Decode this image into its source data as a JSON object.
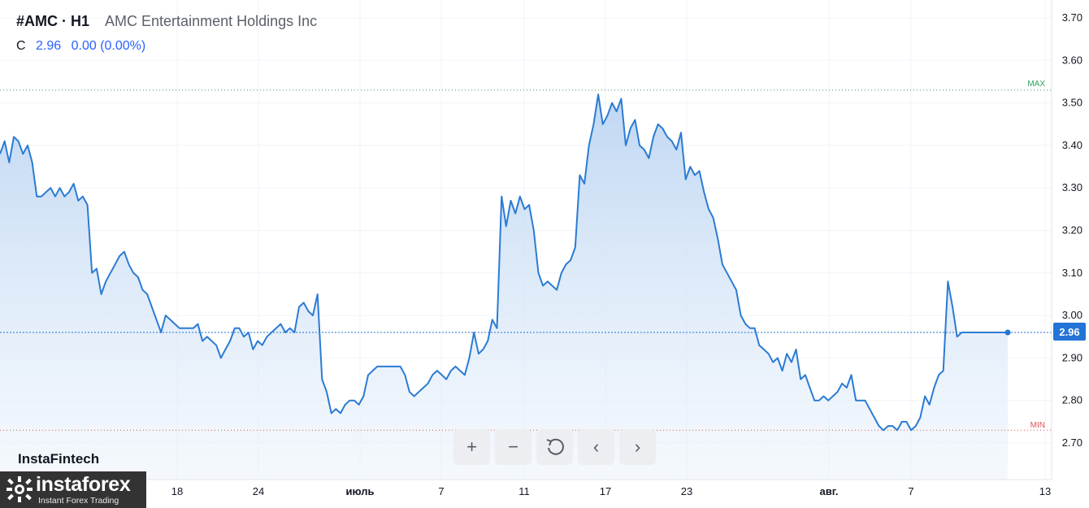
{
  "header": {
    "symbol": "#AMC · H1",
    "company": "AMC Entertainment Holdings Inc"
  },
  "quote": {
    "label": "C",
    "value": "2.96",
    "change": "0.00 (0.00%)"
  },
  "brand": "InstaFintech",
  "logo": {
    "wordmark": "instaforex",
    "tagline": "Instant Forex Trading"
  },
  "toolbar": {
    "zoom_in": "+",
    "zoom_out": "−",
    "prev": "‹",
    "next": "›"
  },
  "chart_data": {
    "type": "area",
    "y_ticks": [
      "3.70",
      "3.60",
      "3.50",
      "3.40",
      "3.30",
      "3.20",
      "3.10",
      "3.00",
      "2.90",
      "2.80",
      "2.70"
    ],
    "x_ticks": [
      "18",
      "24",
      "июль",
      "7",
      "11",
      "17",
      "23",
      "авг.",
      "7",
      "13"
    ],
    "ylim": [
      2.62,
      3.74
    ],
    "current_price": "2.96",
    "max_label": "MAX",
    "max_value": 3.53,
    "min_label": "MIN",
    "min_value": 2.73,
    "grid": true,
    "colors": {
      "line": "#2b7bd3",
      "fill": "#c9ddf3",
      "max": "#2e9e5b",
      "min": "#e05050",
      "price": "#2374d6"
    },
    "values": [
      3.38,
      3.41,
      3.36,
      3.42,
      3.41,
      3.38,
      3.4,
      3.36,
      3.28,
      3.28,
      3.29,
      3.3,
      3.28,
      3.3,
      3.28,
      3.29,
      3.31,
      3.27,
      3.28,
      3.26,
      3.1,
      3.11,
      3.05,
      3.08,
      3.1,
      3.12,
      3.14,
      3.15,
      3.12,
      3.1,
      3.09,
      3.06,
      3.05,
      3.02,
      2.99,
      2.96,
      3.0,
      2.99,
      2.98,
      2.97,
      2.97,
      2.97,
      2.97,
      2.98,
      2.94,
      2.95,
      2.94,
      2.93,
      2.9,
      2.92,
      2.94,
      2.97,
      2.97,
      2.95,
      2.96,
      2.92,
      2.94,
      2.93,
      2.95,
      2.96,
      2.97,
      2.98,
      2.96,
      2.97,
      2.96,
      3.02,
      3.03,
      3.01,
      3.0,
      3.05,
      2.85,
      2.82,
      2.77,
      2.78,
      2.77,
      2.79,
      2.8,
      2.8,
      2.79,
      2.81,
      2.86,
      2.87,
      2.88,
      2.88,
      2.88,
      2.88,
      2.88,
      2.88,
      2.86,
      2.82,
      2.81,
      2.82,
      2.83,
      2.84,
      2.86,
      2.87,
      2.86,
      2.85,
      2.87,
      2.88,
      2.87,
      2.86,
      2.9,
      2.96,
      2.91,
      2.92,
      2.94,
      2.99,
      2.97,
      3.28,
      3.21,
      3.27,
      3.24,
      3.28,
      3.25,
      3.26,
      3.2,
      3.1,
      3.07,
      3.08,
      3.07,
      3.06,
      3.1,
      3.12,
      3.13,
      3.16,
      3.33,
      3.31,
      3.4,
      3.45,
      3.52,
      3.45,
      3.47,
      3.5,
      3.48,
      3.51,
      3.4,
      3.44,
      3.46,
      3.4,
      3.39,
      3.37,
      3.42,
      3.45,
      3.44,
      3.42,
      3.41,
      3.39,
      3.43,
      3.32,
      3.35,
      3.33,
      3.34,
      3.29,
      3.25,
      3.23,
      3.18,
      3.12,
      3.1,
      3.08,
      3.06,
      3.0,
      2.98,
      2.97,
      2.97,
      2.93,
      2.92,
      2.91,
      2.89,
      2.9,
      2.87,
      2.91,
      2.89,
      2.92,
      2.85,
      2.86,
      2.83,
      2.8,
      2.8,
      2.81,
      2.8,
      2.81,
      2.82,
      2.84,
      2.83,
      2.86,
      2.8,
      2.8,
      2.8,
      2.78,
      2.76,
      2.74,
      2.73,
      2.74,
      2.74,
      2.73,
      2.75,
      2.75,
      2.73,
      2.74,
      2.76,
      2.81,
      2.79,
      2.83,
      2.86,
      2.87,
      3.08,
      3.02,
      2.95,
      2.96,
      2.96,
      2.96,
      2.96,
      2.96,
      2.96,
      2.96,
      2.96,
      2.96,
      2.96,
      2.96
    ]
  }
}
